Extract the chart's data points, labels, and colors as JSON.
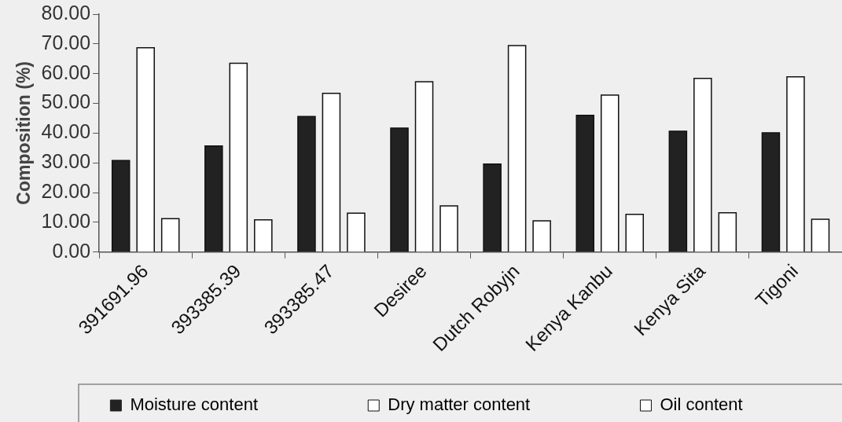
{
  "chart_data": {
    "type": "bar",
    "ylabel": "Composition (%)",
    "categories": [
      "391691.96",
      "393385.39",
      "393385.47",
      "Desiree",
      "Dutch Robyjn",
      "Kenya Kanbu",
      "Kenya Sita",
      "Tigoni"
    ],
    "series": [
      {
        "name": "Moisture content",
        "color": "#222222",
        "values": [
          30.8,
          35.7,
          45.6,
          41.7,
          29.6,
          46.0,
          40.6,
          40.1
        ]
      },
      {
        "name": "Dry matter content",
        "color": "#ffffff",
        "values": [
          68.7,
          63.5,
          53.4,
          57.3,
          69.4,
          52.8,
          58.4,
          58.9
        ]
      },
      {
        "name": "Oil content",
        "color": "#ffffff",
        "values": [
          11.2,
          10.8,
          13.1,
          15.5,
          10.5,
          12.7,
          13.2,
          11.0
        ]
      }
    ],
    "ylim": [
      0,
      80
    ],
    "yticks": [
      {
        "value": 0,
        "label": "0.00"
      },
      {
        "value": 10,
        "label": "10.00"
      },
      {
        "value": 20,
        "label": "20.00"
      },
      {
        "value": 30,
        "label": "30.00"
      },
      {
        "value": 40,
        "label": "40.00"
      },
      {
        "value": 50,
        "label": "50.00"
      },
      {
        "value": 60,
        "label": "60.00"
      },
      {
        "value": 70,
        "label": "70.00"
      },
      {
        "value": 80,
        "label": "80.00"
      }
    ],
    "legend": "bottom"
  }
}
